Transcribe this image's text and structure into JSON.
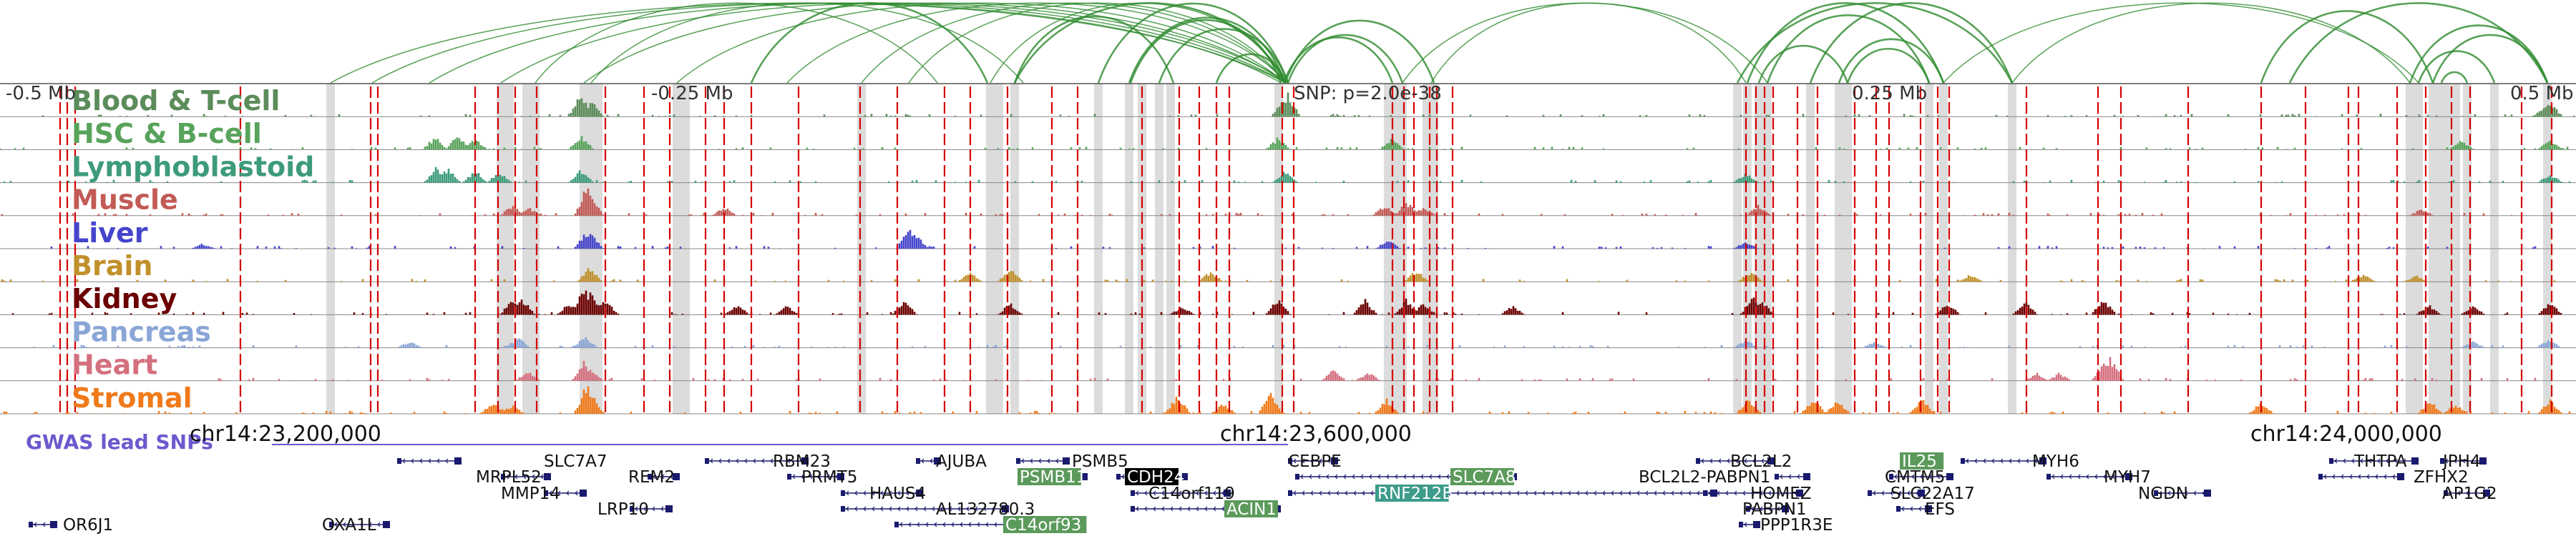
{
  "top_axis": {
    "ticks": [
      {
        "label": "-0.5 Mb",
        "mb": -0.5
      },
      {
        "label": "-0.25 Mb",
        "mb": -0.25
      },
      {
        "label": "0.25 Mb",
        "mb": 0.25
      },
      {
        "label": "0.5 Mb",
        "mb": 0.5
      }
    ],
    "snp_label": "SNP: p=2.0e-38",
    "snp_color": "#d40000"
  },
  "tracks": [
    {
      "name": "Blood & T-cell",
      "color": "#5b8c5a"
    },
    {
      "name": "HSC & B-cell",
      "color": "#58a35b"
    },
    {
      "name": "Lymphoblastoid",
      "color": "#3d9b7a"
    },
    {
      "name": "Muscle",
      "color": "#c25a55"
    },
    {
      "name": "Liver",
      "color": "#4545cc"
    },
    {
      "name": "Brain",
      "color": "#c0902a"
    },
    {
      "name": "Kidney",
      "color": "#6b0000"
    },
    {
      "name": "Pancreas",
      "color": "#8aa6d6"
    },
    {
      "name": "Heart",
      "color": "#d4707e"
    },
    {
      "name": "Stromal",
      "color": "#f07a1a"
    }
  ],
  "gwas": {
    "label": "GWAS lead SNPs",
    "color": "#6a5acd"
  },
  "coord_axis": {
    "ticks": [
      {
        "label": "chr14:23,200,000",
        "pos": 23200000
      },
      {
        "label": "chr14:23,600,000",
        "pos": 23600000
      },
      {
        "label": "chr14:24,000,000",
        "pos": 24000000
      }
    ]
  },
  "genes": [
    {
      "name": "SLC7A7"
    },
    {
      "name": "RBM23"
    },
    {
      "name": "AJUBA"
    },
    {
      "name": "PSMB5"
    },
    {
      "name": "CEBPE"
    },
    {
      "name": "BCL2L2"
    },
    {
      "name": "IL25",
      "highlight": "green"
    },
    {
      "name": "MYH6"
    },
    {
      "name": "THTPA"
    },
    {
      "name": "JPH4"
    },
    {
      "name": "MRPL52"
    },
    {
      "name": "REM2"
    },
    {
      "name": "PRMT5"
    },
    {
      "name": "PSMB11",
      "highlight": "green"
    },
    {
      "name": "CDH24",
      "highlight": "black"
    },
    {
      "name": "SLC7A8",
      "highlight": "green"
    },
    {
      "name": "BCL2L2-PABPN1"
    },
    {
      "name": "CMTM5"
    },
    {
      "name": "MYH7"
    },
    {
      "name": "ZFHX2"
    },
    {
      "name": "MMP14"
    },
    {
      "name": "HAUS4"
    },
    {
      "name": "C14orf119"
    },
    {
      "name": "RNF212B",
      "highlight": "teal"
    },
    {
      "name": "HOMEZ"
    },
    {
      "name": "SLC22A17"
    },
    {
      "name": "NGDN"
    },
    {
      "name": "AP1G2"
    },
    {
      "name": "LRP10"
    },
    {
      "name": "AL132780.3"
    },
    {
      "name": "ACIN1",
      "highlight": "green"
    },
    {
      "name": "PABPN1"
    },
    {
      "name": "EFS"
    },
    {
      "name": "OR6J1"
    },
    {
      "name": "OXA1L"
    },
    {
      "name": "C14orf93",
      "highlight": "green"
    },
    {
      "name": "PPP1R3E"
    }
  ],
  "colors": {
    "arc": "#2e8b2e",
    "highlight_band": "#dcdcdc",
    "snp_line": "#d40000",
    "gene_feature": "#1a1a6e",
    "highlight_green": "#5b9a5b",
    "highlight_teal": "#3d9b8a",
    "highlight_black": "#000000"
  }
}
